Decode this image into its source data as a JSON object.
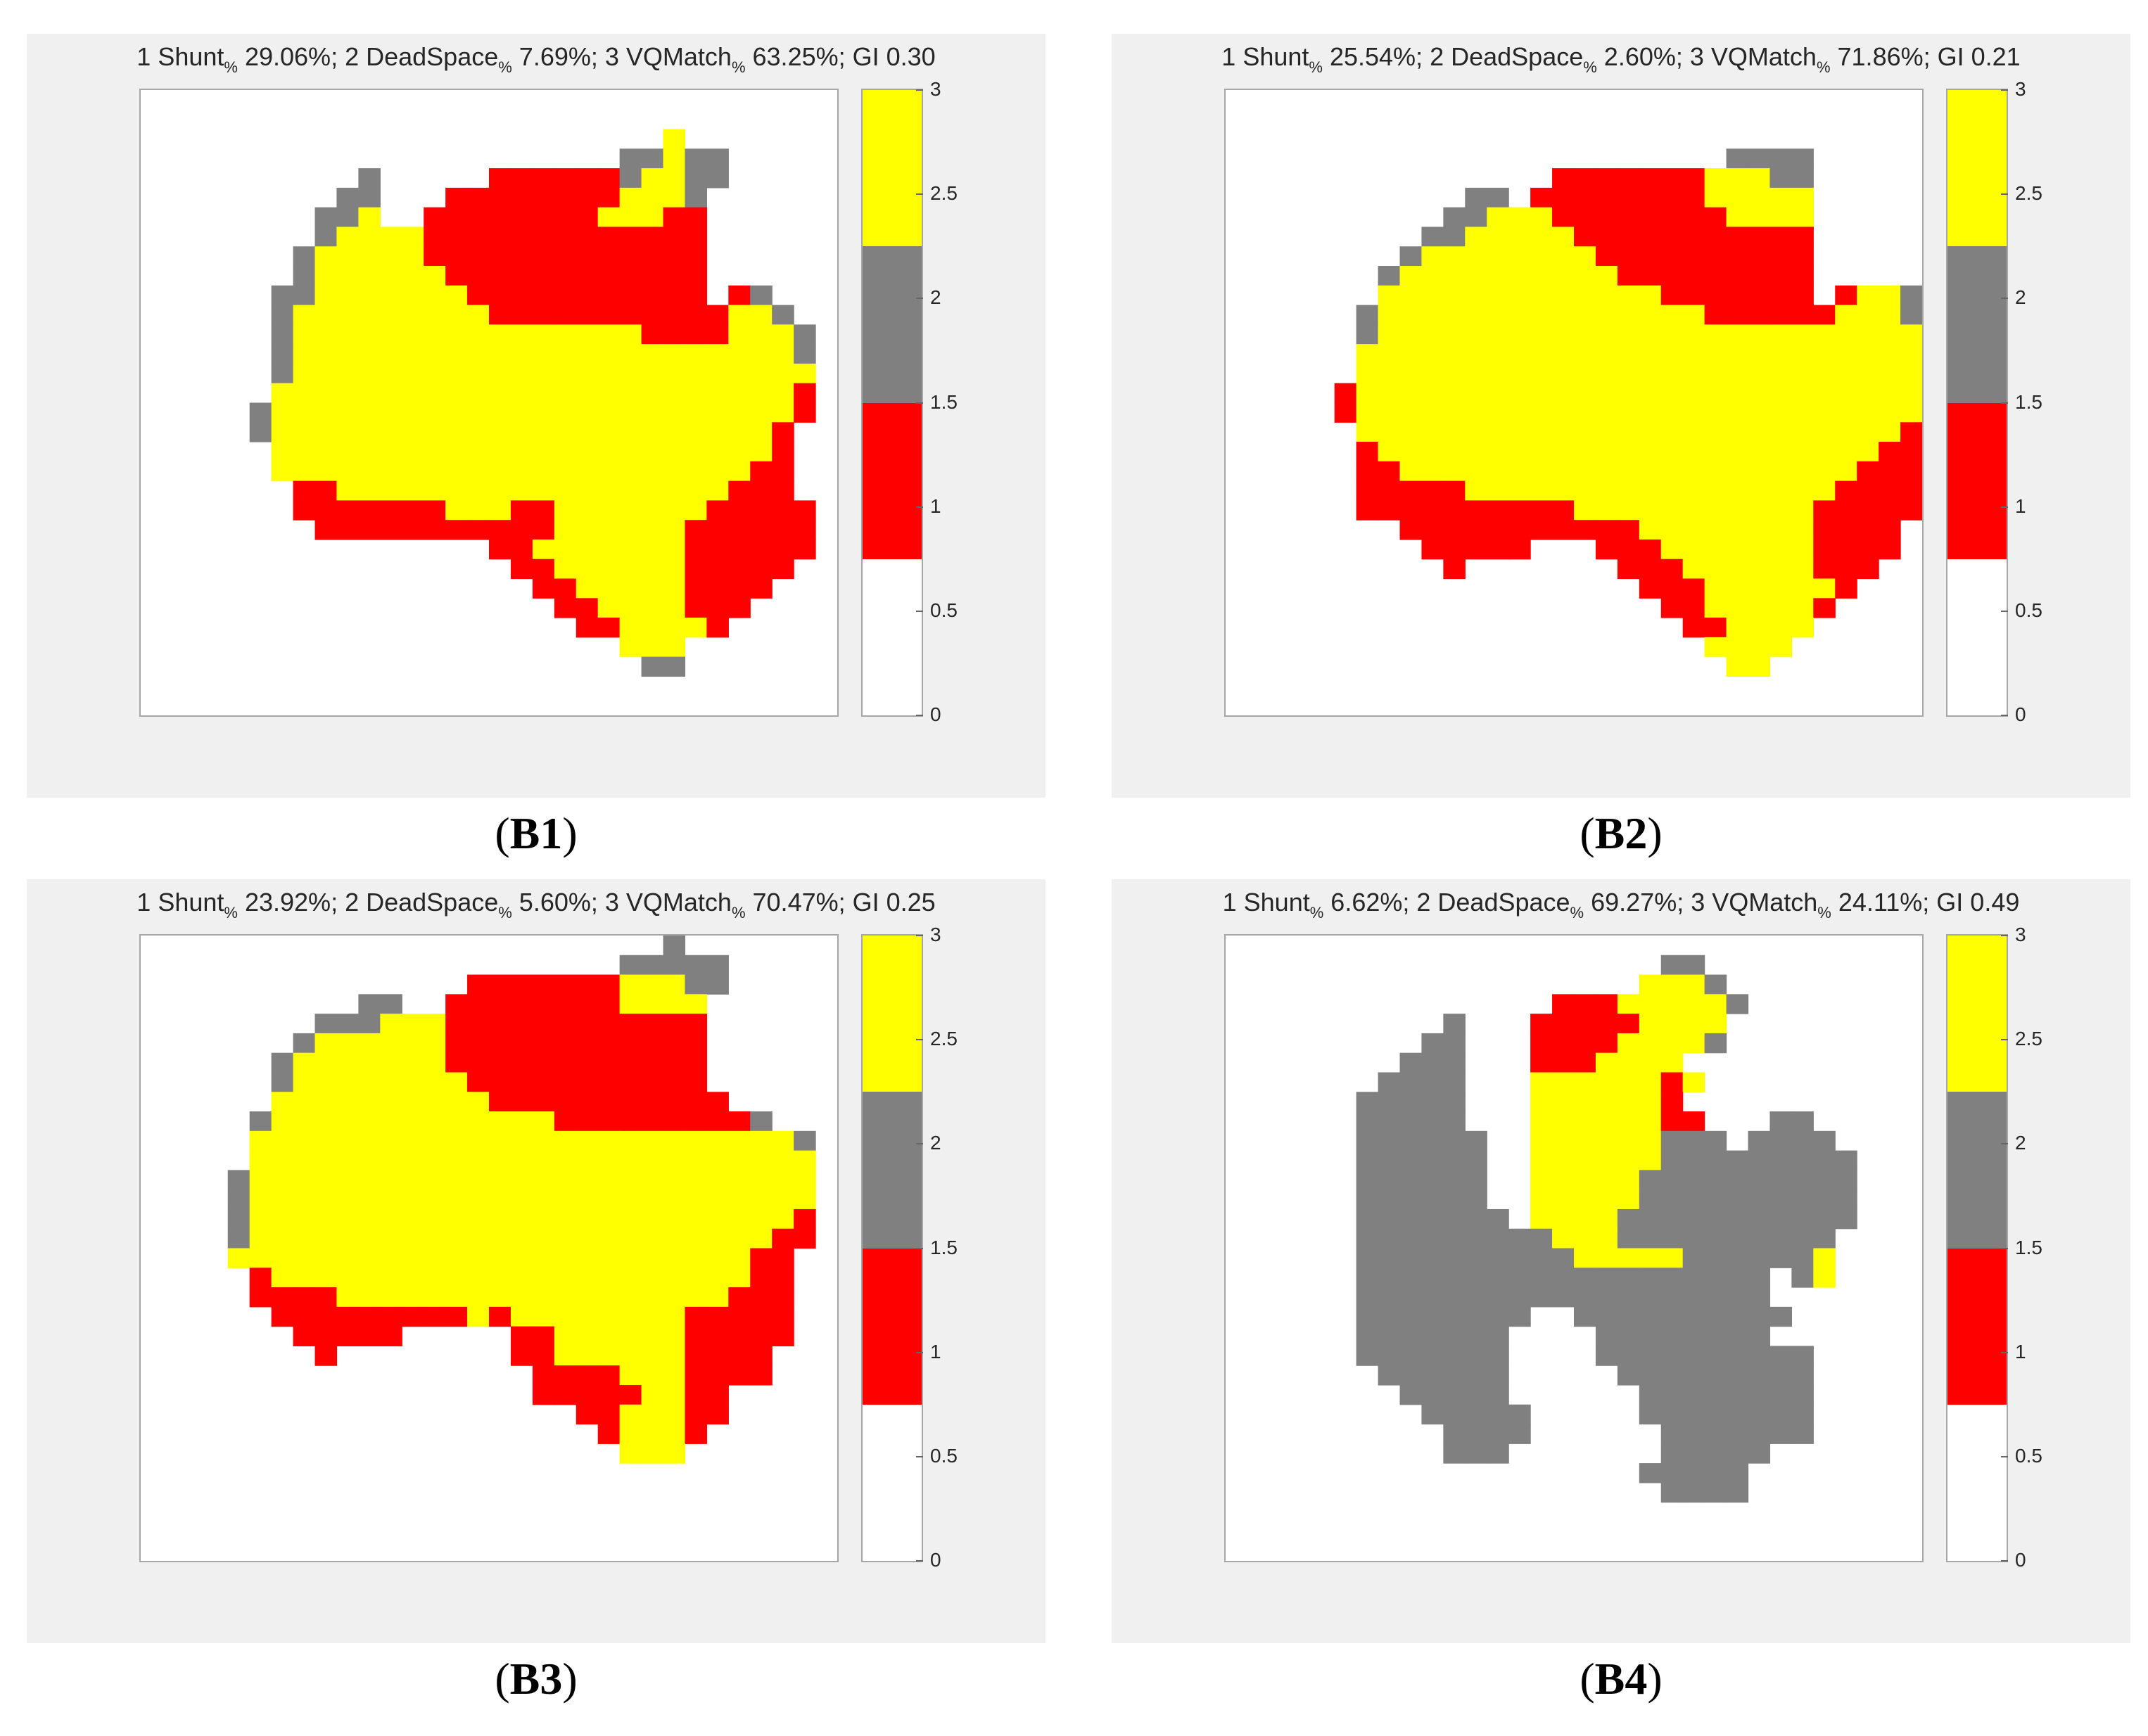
{
  "chart_data": [
    {
      "type": "heatmap",
      "caption": "B1",
      "title": {
        "parts": [
          {
            "text": "1 Shunt"
          },
          {
            "sub": "%"
          },
          {
            "text": " 29.06%; 2 DeadSpace"
          },
          {
            "sub": "%"
          },
          {
            "text": " 7.69%; 3 VQMatch"
          },
          {
            "sub": "%"
          },
          {
            "text": " 63.25%; GI 0.30"
          }
        ]
      },
      "shunt_pct": 29.06,
      "deadspace_pct": 7.69,
      "vqmatch_pct": 63.25,
      "gi": 0.3,
      "grid_size": [
        32,
        32
      ],
      "grid": [
        "................................",
        "................................",
        "........................Y.......",
        "......................GGYGG.....",
        "..........G.....RRRRRRGYYGG.....",
        ".........GG...RRRRRRRRYYYG......",
        "........GGY..RRRRRRRRYYYRR......",
        "........GYYYYRRRRRRRRRRRRR......",
        ".......GYYYYYRRRRRRRRRRRRR......",
        ".......GYYYYYYRRRRRRRRRRRR......",
        "......GGYYYYYYYRRRRRRRRRRR.RG...",
        "......GYYYYYYYYYRRRRRRRRRRRYYG..",
        "......GYYYYYYYYYYYYYYYYRRRRYYYG.",
        "......GYYYYYYYYYYYYYYYYYYYYYYYG.",
        "......GYYYYYYYYYYYYYYYYYYYYYYYY.",
        "......YYYYYYYYYYYYYYYYYYYYYYYYR.",
        ".....GYYYYYYYYYYYYYYYYYYYYYYYYR.",
        ".....GYYYYYYYYYYYYYYYYYYYYYYYR..",
        "......YYYYYYYYYYYYYYYYYYYYYYYR..",
        "......YYYYYYYYYYYYYYYYYYYYYYRR..",
        ".......RRYYYYYYYYYYYYYYYYYYRRR..",
        ".......RRRRRRRYYYRRYYYYYYYRRRRR..",
        "........RRRRRRRRRRRYYYYYYRRRRRR..",
        "................RRYYYYYYYRRRRRR..",
        ".................RRYYYYYYRRRRR...",
        "..................RRYYYYYRRRR....",
        "...................RRYYYYRRR.....",
        "....................RRYYYYR......",
        "......................YYY........",
        ".......................GG........",
        "................................",
        "................................"
      ],
      "colorbar": {
        "ticks": [
          "0",
          "0.5",
          "1",
          "1.5",
          "2",
          "2.5",
          "3"
        ],
        "range": [
          0,
          3
        ]
      }
    },
    {
      "type": "heatmap",
      "caption": "B2",
      "title": {
        "parts": [
          {
            "text": "1 Shunt"
          },
          {
            "sub": "%"
          },
          {
            "text": " 25.54%; 2 DeadSpace"
          },
          {
            "sub": "%"
          },
          {
            "text": " 2.60%; 3 VQMatch"
          },
          {
            "sub": "%"
          },
          {
            "text": " 71.86%; GI 0.21"
          }
        ]
      },
      "shunt_pct": 25.54,
      "deadspace_pct": 2.6,
      "vqmatch_pct": 71.86,
      "gi": 0.21,
      "grid_size": [
        32,
        32
      ],
      "grid": [
        "................................",
        "................................",
        "................................",
        ".......................GGGG.....",
        "...............RRRRRRRYYYGG.....",
        "...........GG.RRRRRRRRYYYYY.....",
        "..........GGYYYRRRRRRRRYYYY.....",
        ".........GGYYYYYRRRRRRRRRRR.....",
        "........GYYYYYYYYRRRRRRRRRR.....",
        ".......GYYYYYYYYYYRRRRRRRRR.....",
        ".......YYYYYYYYYYYYYRRRRRRR.RYYG.",
        "......GYYYYYYYYYYYYYYYRRRRRRYYYG.",
        "......GYYYYYYYYYYYYYYYYYYYYYYYYYG",
        "......YYYYYYYYYYYYYYYYYYYYYYYYYYY",
        "......YYYYYYYYYYYYYYYYYYYYYYYYYYY",
        ".....RYYYYYYYYYYYYYYYYYYYYYYYYYYR",
        ".....RYYYYYYYYYYYYYYYYYYYYYYYYYYY",
        "......YYYYYYYYYYYYYYYYYYYYYYYYYRR",
        "......RYYYYYYYYYYYYYYYYYYYYYYYRR.",
        "......RRYYYYYYYYYYYYYYYYYYYYYRRR.",
        "......RRRRRYYYYYYYYYYYYYYYYYRRRR.",
        "......RRRRRRRRRRYYYYYYYYYYYRRRRR.",
        "........RRRRRRRRRRRYYYYYYYYRRRR..",
        ".........RRRRR...RRRYYYYYYYRRRR..",
        "..........R.......RRRYYYYYYRRR...",
        "...................RRRYYYYYYR....",
        "....................RRYYYYYR.....",
        ".....................RRYYYY......",
        "......................YYYY.......",
        ".......................YY........",
        "................................",
        "................................"
      ],
      "colorbar": {
        "ticks": [
          "0",
          "0.5",
          "1",
          "1.5",
          "2",
          "2.5",
          "3"
        ],
        "range": [
          0,
          3
        ]
      }
    },
    {
      "type": "heatmap",
      "caption": "B3",
      "title": {
        "parts": [
          {
            "text": "1 Shunt"
          },
          {
            "sub": "%"
          },
          {
            "text": " 23.92%; 2 DeadSpace"
          },
          {
            "sub": "%"
          },
          {
            "text": " 5.60%; 3 VQMatch"
          },
          {
            "sub": "%"
          },
          {
            "text": " 70.47%; GI 0.25"
          }
        ]
      },
      "shunt_pct": 23.92,
      "deadspace_pct": 5.6,
      "vqmatch_pct": 70.47,
      "gi": 0.25,
      "grid_size": [
        32,
        32
      ],
      "grid": [
        "........................G.......",
        "......................GGGGG.....",
        "...............RRRRRRRYYYGG.....",
        "..........GG..RRRRRRRRYYYY......",
        "........GGGYYYRRRRRRRRRRRR......",
        ".......GYYYYYYRRRRRRRRRRRR......",
        "......GYYYYYYYRRRRRRRRRRRR......",
        "......GYYYYYYYYRRRRRRRRRRR......",
        "......YYYYYYYYYYRRRRRRRRRRR.....",
        ".....GYYYYYYYYYYYYYRRRRRRRRRG...",
        ".....YYYYYYYYYYYYYYYYYYYYYYYYYG.",
        ".....YYYYYYYYYYYYYYYYYYYYYYYYYY.",
        "....GYYYYYYYYYYYYYYYYYYYYYYYYYY.",
        "....GYYYYYYYYYYYYYYYYYYYYYYYYYY.",
        "....GYYYYYYYYYYYYYYYYYYYYYYYYYR.",
        "....GYYYYYYYYYYYYYYYYYYYYYYYYRR.",
        "....YYYYYYYYYYYYYYYYYYYYYYYYRR..",
        ".....RYYYYYYYYYYYYYYYYYYYYYYRR..",
        ".....RRRRYYYYYYYYYYYYYYYYYYRRR..",
        "......RRRRRRRRRYRYYYYYYYYRRRRR..",
        ".......RRRRR.....RRYYYYYYRRRRR..",
        "........R........RRYYYYYYRRRR...",
        "..................RRRRYYYRRRR...",
        "..................RRRRRYYRR.....",
        "....................RRYYYRR.....",
        ".....................RYYYR......",
        "......................YYY.......",
        "................................",
        "................................",
        "................................",
        "................................",
        "................................"
      ],
      "colorbar": {
        "ticks": [
          "0",
          "0.5",
          "1",
          "1.5",
          "2",
          "2.5",
          "3"
        ],
        "range": [
          0,
          3
        ]
      }
    },
    {
      "type": "heatmap",
      "caption": "B4",
      "title": {
        "parts": [
          {
            "text": "1 Shunt"
          },
          {
            "sub": "%"
          },
          {
            "text": " 6.62%; 2 DeadSpace"
          },
          {
            "sub": "%"
          },
          {
            "text": " 69.27%; 3 VQMatch"
          },
          {
            "sub": "%"
          },
          {
            "text": " 24.11%; GI 0.49"
          }
        ]
      },
      "shunt_pct": 6.62,
      "deadspace_pct": 69.27,
      "vqmatch_pct": 24.11,
      "gi": 0.49,
      "grid_size": [
        32,
        32
      ],
      "grid": [
        "................................",
        "....................GG..........",
        "...................YYYG.........",
        "...............RRRYYYYYG........",
        "..........G...RRRRRYYYY.........",
        ".........GG...RRRRYYYYG.........",
        "........GGG...RRRYYYY...........",
        ".......GGGG...YYYYYYRY..........",
        "......GGGGG...YYYYYYR...........",
        "......GGGGG...YYYYYYRR...GG.....",
        "......GGGGGG..YYYYYYGGG.GGGG....",
        "......GGGGGG..YYYYYYGGGGGGGGG...",
        "......GGGGGG..YYYYYGGGGGGGGGG...",
        "......GGGGGG..YYYYYGGGGGGGGGG...",
        "......GGGGGGG.YYYYGGGGGGGGGGG...",
        "......GGGGGGGGGYYYGGGGGGGGGG....",
        "......GGGGGGGGGGYYYYYGGGGGGY....",
        "......GGGGGGGGGGGGGGGGGGG.GY....",
        "......GGGGGGGGGGGGGGGGGGG.......",
        "......GGGGGGGG..GGGGGGGGGG......",
        "......GGGGGGG....GGGGGGGG.......",
        "......GGGGGGG....GGGGGGGGGG.....",
        ".......GGGGGG.....GGGGGGGGG.....",
        "........GGGGG......GGGGGGGG.....",
        ".........GGGGG.....GGGGGGGG.....",
        "..........GGGG......GGGGGGG.....",
        "..........GGG.......GGGGG.......",
        "...................GGGGG........",
        "....................GGGG........",
        "................................",
        "................................",
        "................................"
      ],
      "colorbar": {
        "ticks": [
          "0",
          "0.5",
          "1",
          "1.5",
          "2",
          "2.5",
          "3"
        ],
        "range": [
          0,
          3
        ]
      }
    }
  ],
  "colors": {
    "shunt": "#ff0000",
    "deadspace": "#808080",
    "vqmatch": "#ffff00",
    "background": "#ffffff"
  }
}
